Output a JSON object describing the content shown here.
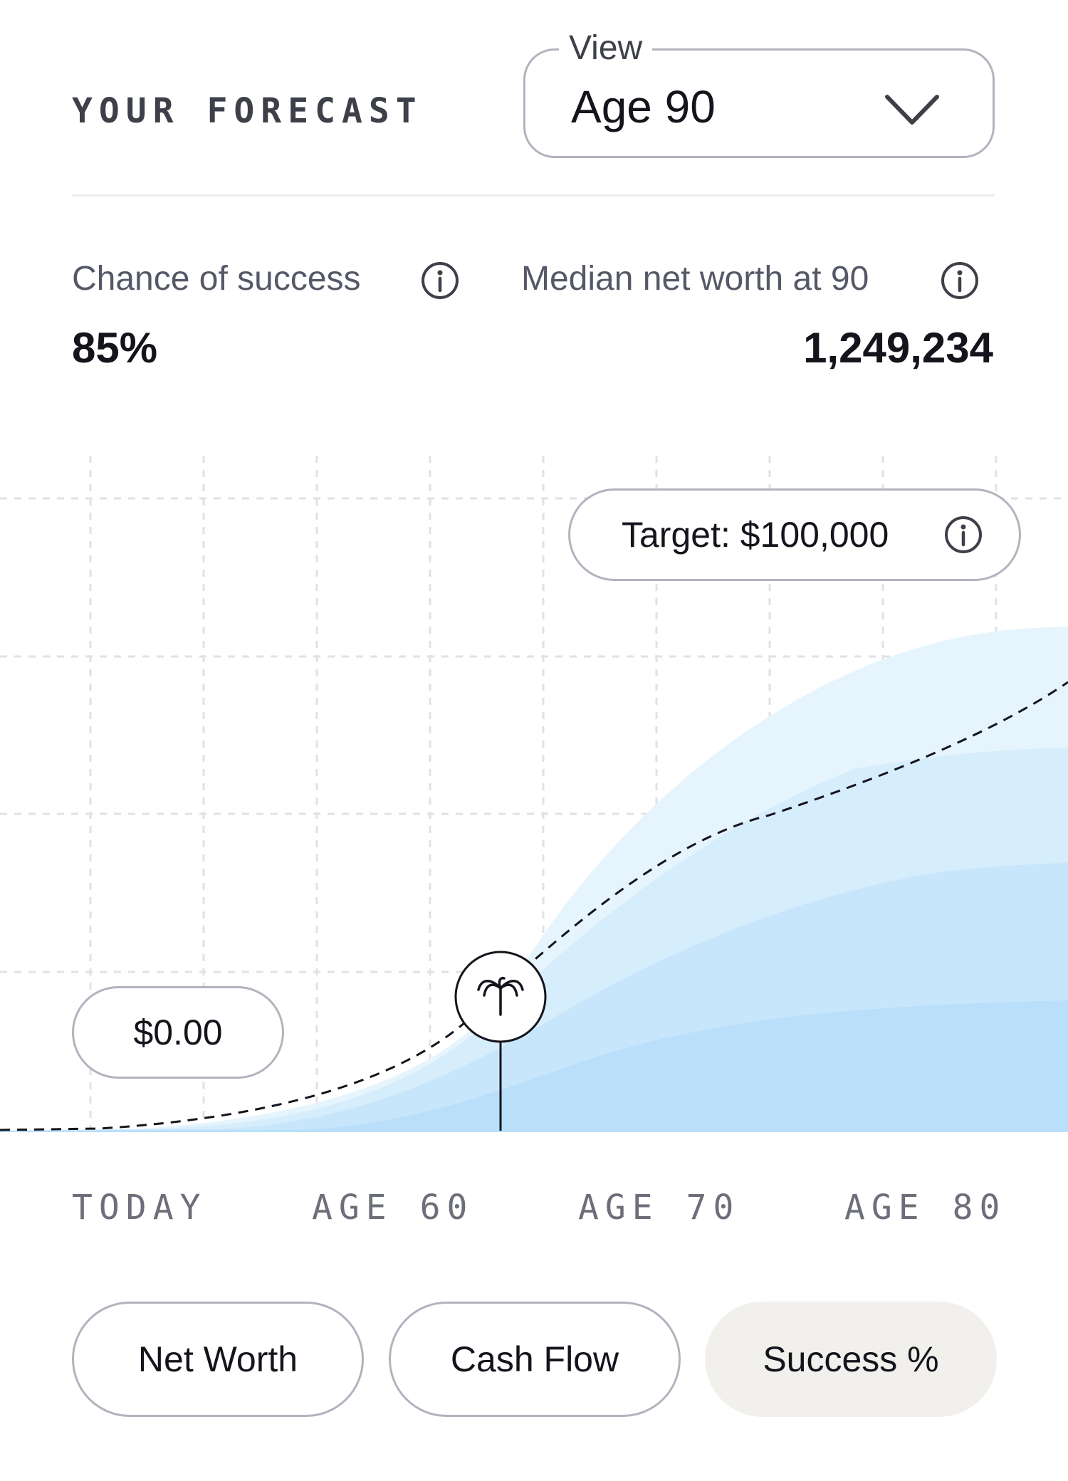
{
  "header": {
    "title": "YOUR FORECAST",
    "view_select": {
      "legend": "View",
      "value": "Age 90",
      "icon": "chevron-down-icon"
    }
  },
  "stats": {
    "success": {
      "label": "Chance of success",
      "value": "85%",
      "icon": "info-icon"
    },
    "median": {
      "label": "Median net worth at 90",
      "value": "1,249,234",
      "icon": "info-icon"
    }
  },
  "chart": {
    "target_label": "Target: $100,000",
    "start_label": "$0.00",
    "marker_icon": "palm-tree-icon",
    "x_labels": [
      "TODAY",
      "AGE 60",
      "AGE 70",
      "AGE 80"
    ]
  },
  "tabs": [
    {
      "label": "Net Worth",
      "active": false
    },
    {
      "label": "Cash Flow",
      "active": false
    },
    {
      "label": "Success %",
      "active": true
    }
  ],
  "colors": {
    "band_outer": "#e6f4fd",
    "band_mid": "#d6edfc",
    "band_inner": "#c8e6fb",
    "band_core": "#b9dffa",
    "active_tab": "#f2f0ed",
    "border": "#b3b3bf"
  }
}
